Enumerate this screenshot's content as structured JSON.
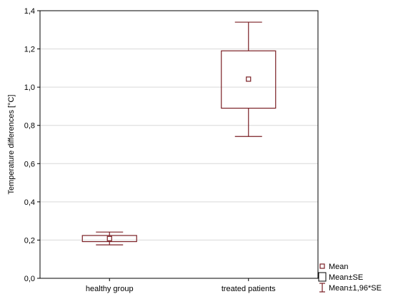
{
  "chart_data": {
    "type": "box",
    "ylabel": "Temperature differences [°C]",
    "xlabel": "",
    "categories": [
      "healthy group",
      "treated patients"
    ],
    "ylim": [
      0.0,
      1.4
    ],
    "yticks": [
      "0,0",
      "0,2",
      "0,4",
      "0,6",
      "0,8",
      "1,0",
      "1,2",
      "1,4"
    ],
    "ytick_values": [
      0.0,
      0.2,
      0.4,
      0.6,
      0.8,
      1.0,
      1.2,
      1.4
    ],
    "grid": true,
    "legend_position": "bottom-right",
    "color": "#7a1f24",
    "series": [
      {
        "category": "healthy group",
        "mean": 0.208,
        "se_low": 0.192,
        "se_high": 0.224,
        "ci_low": 0.175,
        "ci_high": 0.242
      },
      {
        "category": "treated patients",
        "mean": 1.042,
        "se_low": 0.89,
        "se_high": 1.19,
        "ci_low": 0.742,
        "ci_high": 1.34
      }
    ],
    "legend": [
      {
        "symbol": "mean",
        "label": "Mean"
      },
      {
        "symbol": "box",
        "label": "Mean±SE"
      },
      {
        "symbol": "whisker",
        "label": "Mean±1,96*SE"
      }
    ]
  }
}
